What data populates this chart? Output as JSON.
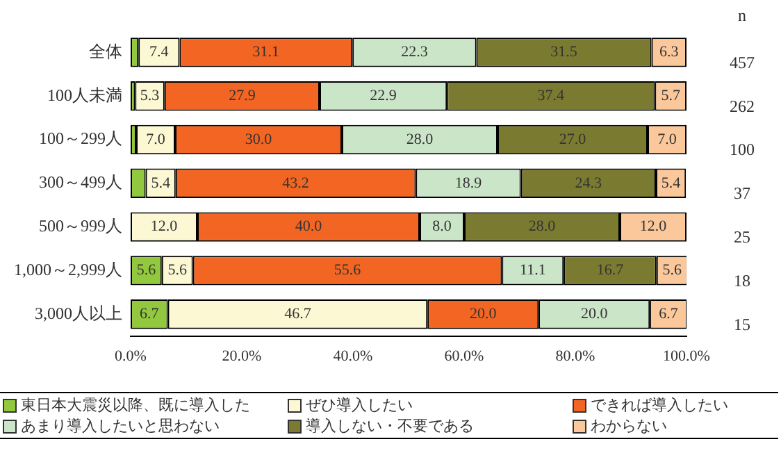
{
  "chart_data": {
    "type": "bar",
    "orientation": "horizontal",
    "stacked": true,
    "legend": "bottom",
    "grid": false,
    "categories": [
      "全体",
      "100人未満",
      "100～299人",
      "300～499人",
      "500～999人",
      "1,000～2,999人",
      "3,000人以上"
    ],
    "xlim": [
      0,
      100
    ],
    "xticks": [
      {
        "value": 0,
        "label": "0.0%"
      },
      {
        "value": 20,
        "label": "20.0%"
      },
      {
        "value": 40,
        "label": "40.0%"
      },
      {
        "value": 60,
        "label": "60.0%"
      },
      {
        "value": 80,
        "label": "80.0%"
      },
      {
        "value": 100,
        "label": "100.0%"
      }
    ],
    "series": [
      {
        "name": "東日本大震災以降、既に導入した",
        "color": "#92c83e",
        "values": [
          1.4,
          0.8,
          1.0,
          2.7,
          0,
          5.6,
          6.7
        ],
        "value_labels": [
          null,
          null,
          null,
          null,
          null,
          "5.6",
          "6.7"
        ]
      },
      {
        "name": "ぜひ導入したい",
        "color": "#fbf8d3",
        "values": [
          7.4,
          5.3,
          7.0,
          5.4,
          12.0,
          5.6,
          46.7
        ],
        "value_labels": [
          "7.4",
          "5.3",
          "7.0",
          "5.4",
          "12.0",
          "5.6",
          "46.7"
        ]
      },
      {
        "name": "できれば導入したい",
        "color": "#f26522",
        "values": [
          31.1,
          27.9,
          30.0,
          43.2,
          40.0,
          55.6,
          20.0
        ],
        "value_labels": [
          "31.1",
          "27.9",
          "30.0",
          "43.2",
          "40.0",
          "55.6",
          "20.0"
        ]
      },
      {
        "name": "あまり導入したいと思わない",
        "color": "#cbe5c8",
        "values": [
          22.3,
          22.9,
          28.0,
          18.9,
          8.0,
          11.1,
          20.0
        ],
        "value_labels": [
          "22.3",
          "22.9",
          "28.0",
          "18.9",
          "8.0",
          "11.1",
          "20.0"
        ]
      },
      {
        "name": "導入しない・不要である",
        "color": "#7a7a31",
        "values": [
          31.5,
          37.4,
          27.0,
          24.3,
          28.0,
          16.7,
          0
        ],
        "value_labels": [
          "31.5",
          "37.4",
          "27.0",
          "24.3",
          "28.0",
          "16.7",
          null
        ]
      },
      {
        "name": "わからない",
        "color": "#fbc89b",
        "values": [
          6.3,
          5.7,
          7.0,
          5.4,
          12.0,
          5.6,
          6.7
        ],
        "value_labels": [
          "6.3",
          "5.7",
          "7.0",
          "5.4",
          "12.0",
          "5.6",
          "6.7"
        ]
      }
    ],
    "annotations": [
      "n",
      "457",
      "262",
      "100",
      "37",
      "25",
      "18",
      "15"
    ]
  }
}
